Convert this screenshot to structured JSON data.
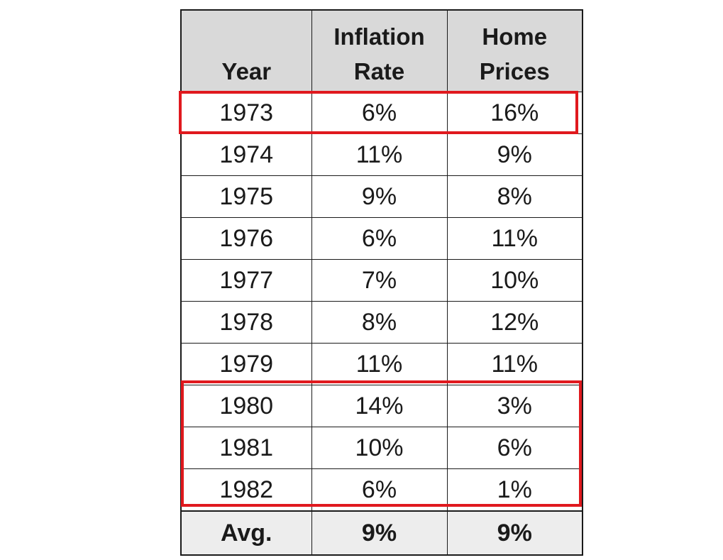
{
  "chart_data": {
    "type": "table",
    "columns": [
      {
        "line1": "",
        "line2": "Year"
      },
      {
        "line1": "Inflation",
        "line2": "Rate"
      },
      {
        "line1": "Home",
        "line2": "Prices"
      }
    ],
    "rows": [
      [
        "1973",
        "6%",
        "16%"
      ],
      [
        "1974",
        "11%",
        "9%"
      ],
      [
        "1975",
        "9%",
        "8%"
      ],
      [
        "1976",
        "6%",
        "11%"
      ],
      [
        "1977",
        "7%",
        "10%"
      ],
      [
        "1978",
        "8%",
        "12%"
      ],
      [
        "1979",
        "11%",
        "11%"
      ],
      [
        "1980",
        "14%",
        "3%"
      ],
      [
        "1981",
        "10%",
        "6%"
      ],
      [
        "1982",
        "6%",
        "1%"
      ]
    ],
    "footer": [
      "Avg.",
      "9%",
      "9%"
    ],
    "highlighted_rows": [
      [
        "1973"
      ],
      [
        "1980",
        "1981",
        "1982"
      ]
    ],
    "highlight_color": "#e0191e",
    "header_background": "#d9d9d9",
    "footer_background": "#ededed"
  }
}
